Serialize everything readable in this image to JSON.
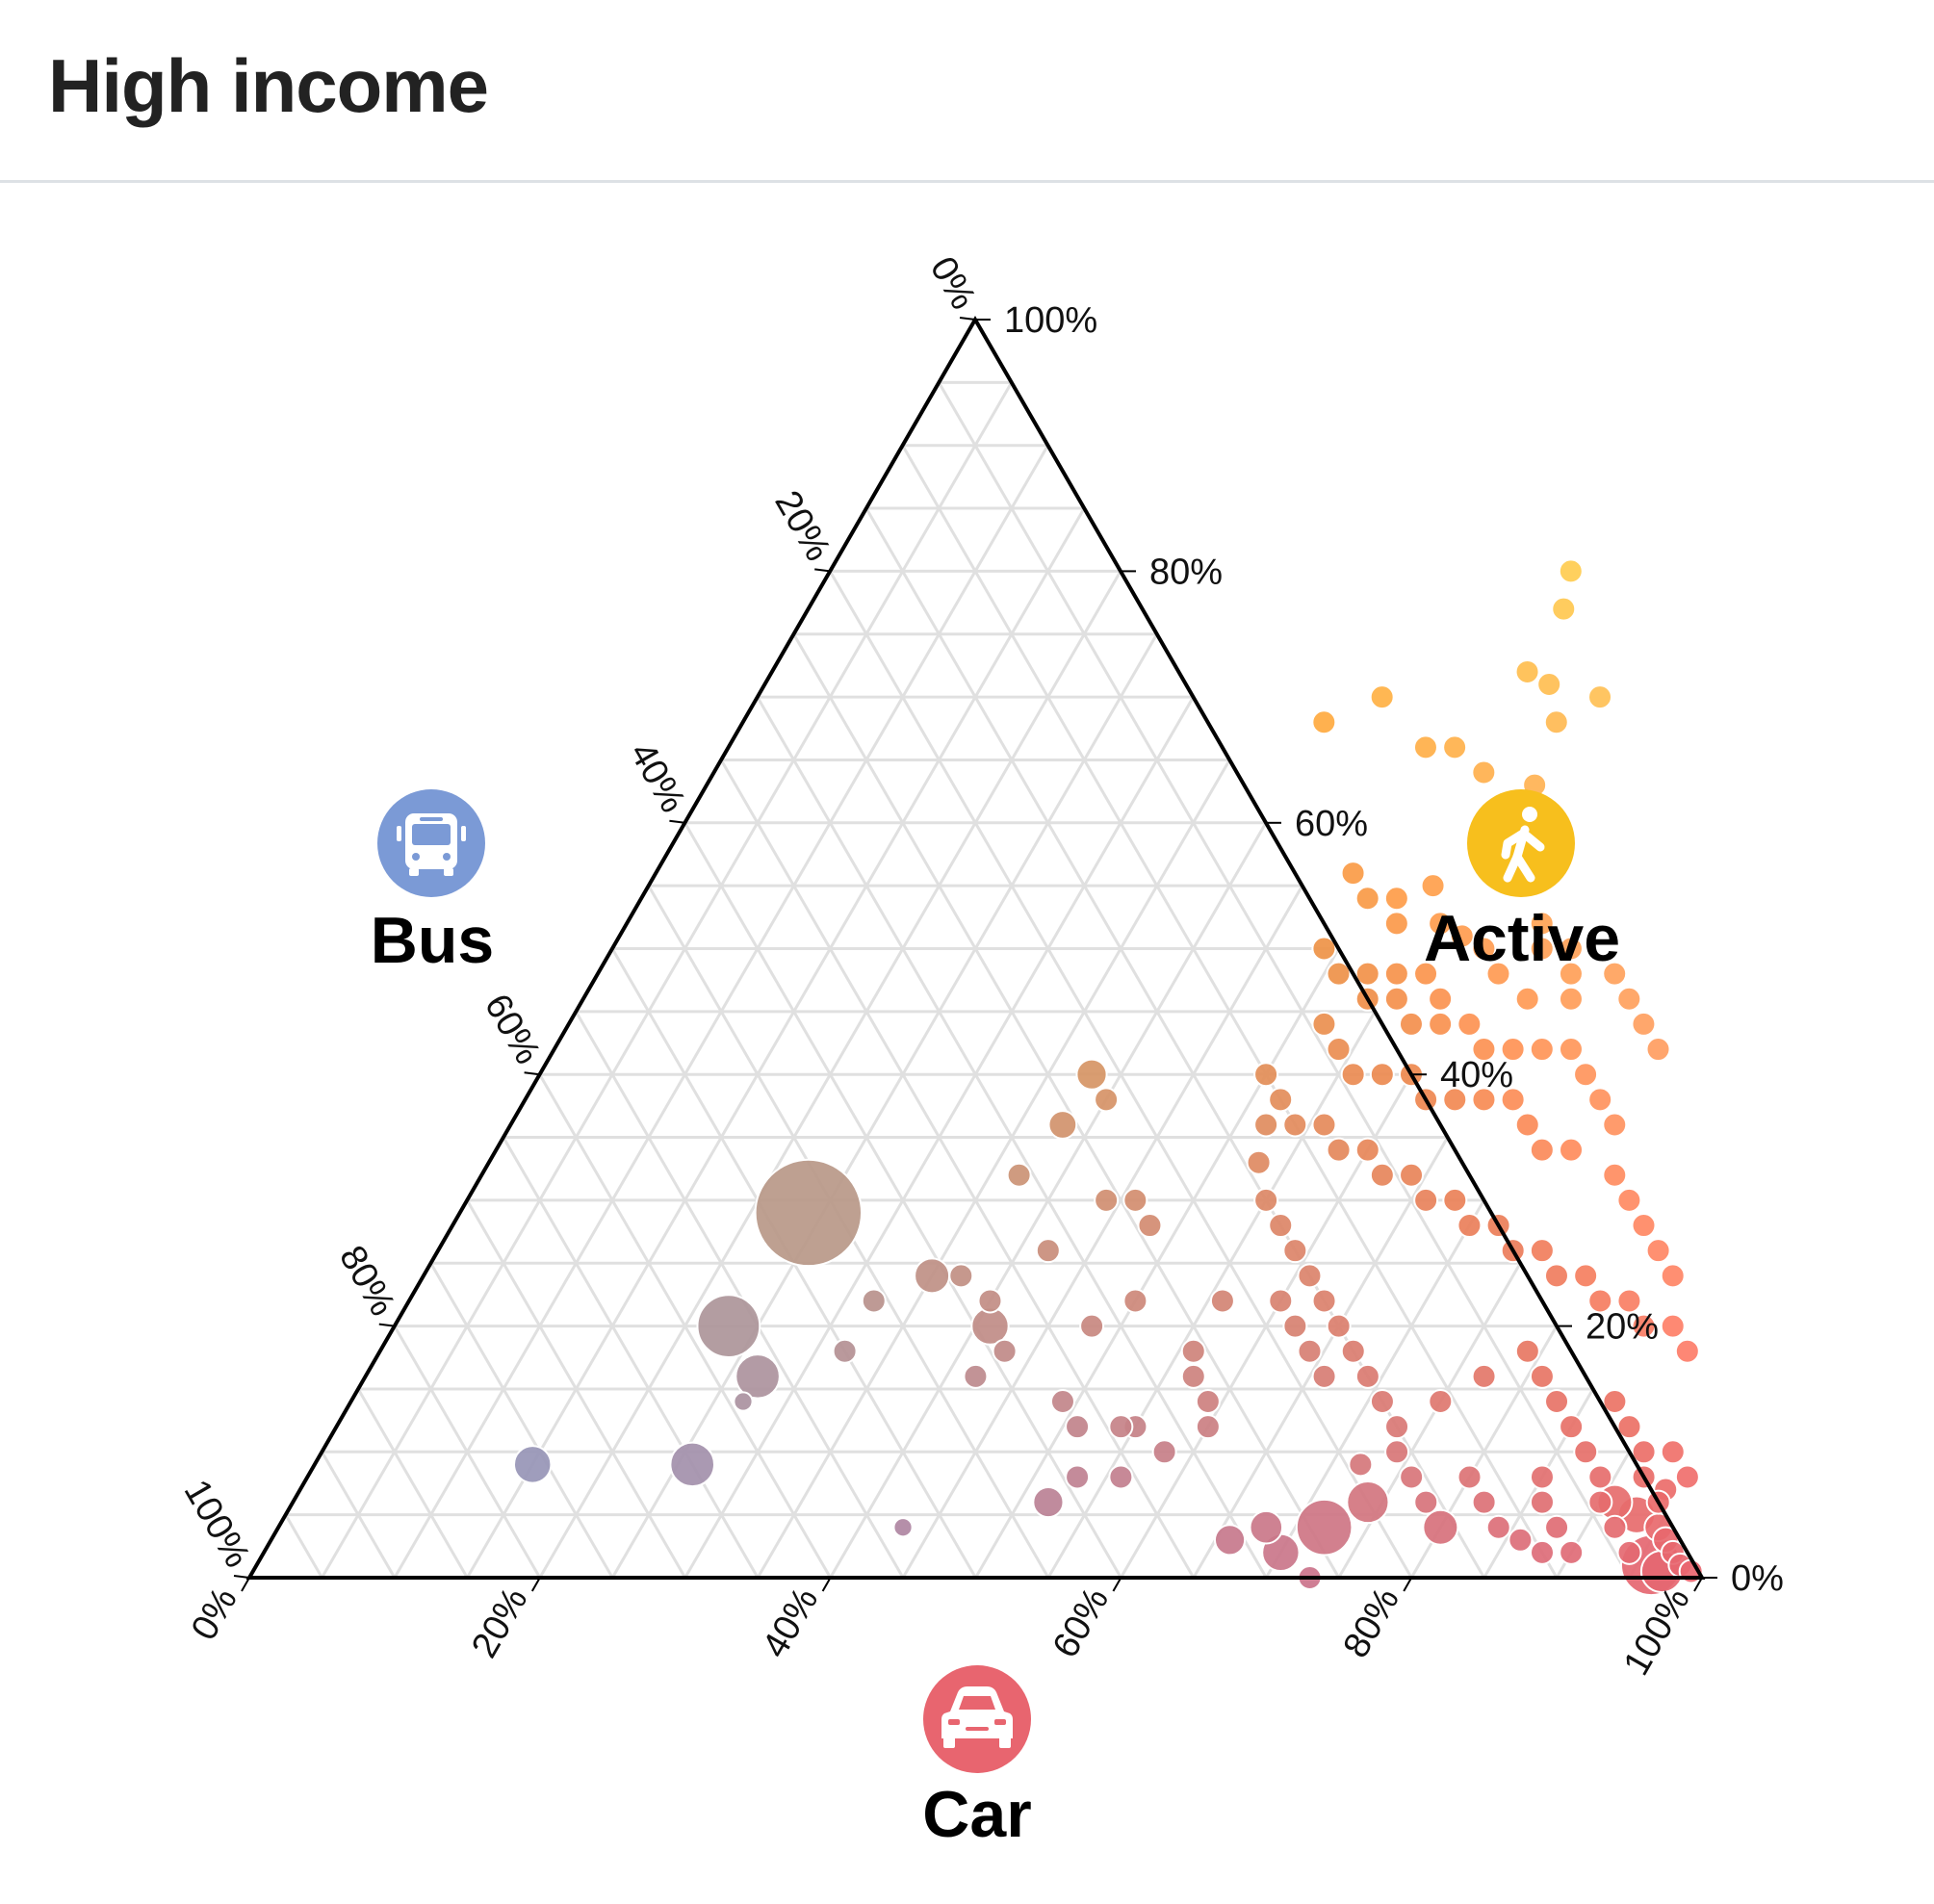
{
  "title": "High income",
  "chart_data": {
    "type": "scatter",
    "subtype": "ternary",
    "title": "High income",
    "axes": {
      "active": {
        "label": "Active",
        "icon": "walking-person-icon",
        "color": "#f7bf1d",
        "ticks": [
          "0%",
          "20%",
          "40%",
          "60%",
          "80%",
          "100%"
        ]
      },
      "bus": {
        "label": "Bus",
        "icon": "bus-icon",
        "color": "#7b9ad6",
        "ticks": [
          "0%",
          "20%",
          "40%",
          "60%",
          "80%",
          "100%"
        ]
      },
      "car": {
        "label": "Car",
        "icon": "car-icon",
        "color": "#e8656f",
        "ticks": [
          "0%",
          "20%",
          "40%",
          "60%",
          "80%",
          "100%"
        ]
      }
    },
    "grid": true,
    "grid_step_percent": 5,
    "point_fields": [
      "car_pct",
      "active_pct",
      "relative_size"
    ],
    "points": [
      [
        51,
        80,
        1
      ],
      [
        52,
        77,
        1
      ],
      [
        52,
        72,
        1
      ],
      [
        54,
        71,
        1
      ],
      [
        58,
        70,
        1
      ],
      [
        50,
        66,
        1
      ],
      [
        56,
        68,
        1
      ],
      [
        53,
        64,
        1
      ],
      [
        57,
        63,
        1
      ],
      [
        59,
        59,
        1
      ],
      [
        61,
        56,
        1
      ],
      [
        43,
        70,
        1
      ],
      [
        48,
        66,
        1
      ],
      [
        40,
        68,
        1
      ],
      [
        48,
        56,
        1
      ],
      [
        50,
        54,
        1
      ],
      [
        52,
        54,
        1
      ],
      [
        53,
        52,
        1
      ],
      [
        54,
        55,
        1
      ],
      [
        56,
        52,
        1
      ],
      [
        58,
        51,
        1
      ],
      [
        60,
        50,
        1
      ],
      [
        55,
        48,
        1
      ],
      [
        57,
        48,
        1
      ],
      [
        59,
        46,
        1
      ],
      [
        63,
        52,
        1
      ],
      [
        64,
        50,
        1
      ],
      [
        66,
        50,
        1
      ],
      [
        67,
        48,
        1
      ],
      [
        68,
        46,
        1
      ],
      [
        65,
        46,
        1
      ],
      [
        62,
        48,
        1
      ],
      [
        70,
        48,
        1
      ],
      [
        72,
        46,
        1
      ],
      [
        74,
        44,
        1
      ],
      [
        76,
        42,
        1
      ],
      [
        49,
        50,
        1
      ],
      [
        51,
        48,
        1
      ],
      [
        53,
        48,
        1
      ],
      [
        54,
        46,
        1
      ],
      [
        56,
        46,
        1
      ],
      [
        58,
        44,
        1
      ],
      [
        60,
        44,
        1
      ],
      [
        62,
        44,
        1
      ],
      [
        64,
        42,
        1
      ],
      [
        66,
        42,
        1
      ],
      [
        68,
        42,
        1
      ],
      [
        70,
        42,
        1
      ],
      [
        72,
        40,
        1
      ],
      [
        74,
        38,
        1
      ],
      [
        52,
        44,
        1
      ],
      [
        54,
        42,
        1
      ],
      [
        56,
        40,
        1
      ],
      [
        58,
        40,
        1
      ],
      [
        60,
        40,
        1
      ],
      [
        62,
        38,
        1
      ],
      [
        64,
        38,
        1
      ],
      [
        66,
        38,
        1
      ],
      [
        68,
        38,
        1
      ],
      [
        70,
        36,
        1
      ],
      [
        72,
        34,
        1
      ],
      [
        74,
        34,
        1
      ],
      [
        76,
        36,
        1
      ],
      [
        78,
        32,
        1
      ],
      [
        80,
        30,
        1
      ],
      [
        82,
        28,
        1
      ],
      [
        84,
        26,
        1
      ],
      [
        86,
        24,
        1
      ],
      [
        50,
        40,
        1
      ],
      [
        52,
        38,
        1
      ],
      [
        54,
        36,
        1
      ],
      [
        56,
        36,
        1
      ],
      [
        58,
        34,
        1
      ],
      [
        60,
        34,
        1
      ],
      [
        62,
        32,
        1
      ],
      [
        64,
        32,
        1
      ],
      [
        66,
        30,
        1
      ],
      [
        68,
        30,
        1
      ],
      [
        70,
        28,
        1
      ],
      [
        72,
        28,
        1
      ],
      [
        74,
        26,
        1
      ],
      [
        76,
        26,
        1
      ],
      [
        78,
        24,
        1
      ],
      [
        80,
        24,
        1
      ],
      [
        82,
        22,
        1
      ],
      [
        84,
        22,
        1
      ],
      [
        86,
        20,
        1
      ],
      [
        88,
        20,
        1
      ],
      [
        90,
        18,
        1
      ],
      [
        53,
        33,
        1
      ],
      [
        55,
        30,
        1
      ],
      [
        57,
        28,
        1
      ],
      [
        59,
        26,
        1
      ],
      [
        61,
        24,
        1
      ],
      [
        63,
        22,
        1
      ],
      [
        65,
        20,
        1
      ],
      [
        67,
        18,
        1
      ],
      [
        69,
        16,
        1
      ],
      [
        71,
        14,
        1
      ],
      [
        73,
        12,
        1
      ],
      [
        75,
        14,
        1
      ],
      [
        77,
        16,
        1
      ],
      [
        79,
        18,
        1
      ],
      [
        81,
        16,
        1
      ],
      [
        83,
        14,
        1
      ],
      [
        85,
        12,
        1
      ],
      [
        87,
        14,
        1
      ],
      [
        89,
        12,
        1
      ],
      [
        91,
        10,
        1
      ],
      [
        60,
        22,
        1
      ],
      [
        62,
        20,
        1
      ],
      [
        64,
        18,
        1
      ],
      [
        66,
        16,
        1
      ],
      [
        57,
        16,
        1
      ],
      [
        59,
        14,
        1
      ],
      [
        55,
        12,
        1
      ],
      [
        58,
        10,
        1
      ],
      [
        56,
        8,
        1
      ],
      [
        60,
        12,
        1
      ],
      [
        72,
        9,
        1
      ],
      [
        74,
        10,
        1
      ],
      [
        76,
        8,
        1
      ],
      [
        78,
        6,
        1
      ],
      [
        80,
        8,
        1
      ],
      [
        82,
        6,
        1
      ],
      [
        84,
        4,
        1
      ],
      [
        86,
        6,
        1
      ],
      [
        88,
        4,
        1
      ],
      [
        90,
        2,
        1
      ],
      [
        92,
        4,
        1
      ],
      [
        94,
        2,
        1
      ],
      [
        70,
        2,
        1.6
      ],
      [
        72,
        4,
        2.4
      ],
      [
        74,
        6,
        1.8
      ],
      [
        68,
        4,
        1.4
      ],
      [
        66,
        3,
        1.3
      ],
      [
        73,
        0,
        1
      ],
      [
        80,
        4,
        1.5
      ],
      [
        86,
        3,
        1
      ],
      [
        88,
        2,
        1
      ],
      [
        91,
        6,
        1.5
      ],
      [
        93,
        5,
        1.6
      ],
      [
        95,
        4,
        1.2
      ],
      [
        96,
        3,
        1.1
      ],
      [
        97,
        2,
        1
      ],
      [
        98,
        1,
        1
      ],
      [
        99,
        0.5,
        1
      ],
      [
        96,
        1,
        2.6
      ],
      [
        97,
        0.5,
        1.8
      ],
      [
        92,
        8,
        1
      ],
      [
        94,
        7,
        1
      ],
      [
        90,
        6,
        1
      ],
      [
        89,
        8,
        1
      ],
      [
        87,
        10,
        1
      ],
      [
        85,
        8,
        1
      ],
      [
        93,
        10,
        1
      ],
      [
        95,
        8,
        1
      ],
      [
        94,
        6,
        1
      ],
      [
        38,
        40,
        1.3
      ],
      [
        40,
        38,
        1
      ],
      [
        38,
        36,
        1.2
      ],
      [
        37,
        32,
        1
      ],
      [
        44,
        30,
        1
      ],
      [
        46,
        30,
        1
      ],
      [
        48,
        28,
        1
      ],
      [
        42,
        26,
        1
      ],
      [
        37,
        24,
        1
      ],
      [
        35,
        24,
        1.5
      ],
      [
        40,
        22,
        1
      ],
      [
        41,
        20,
        1.6
      ],
      [
        43,
        18,
        1
      ],
      [
        42,
        16,
        1
      ],
      [
        32,
        22,
        1
      ],
      [
        32,
        18,
        1
      ],
      [
        52,
        36,
        1
      ],
      [
        50,
        22,
        1
      ],
      [
        56,
        22,
        1
      ],
      [
        48,
        20,
        1
      ],
      [
        56,
        18,
        1
      ],
      [
        49,
        14,
        1
      ],
      [
        51,
        12,
        1
      ],
      [
        54,
        12,
        1
      ],
      [
        53,
        8,
        1
      ],
      [
        52,
        6,
        1.3
      ],
      [
        43,
        4,
        0.8
      ],
      [
        24,
        29,
        4.6
      ],
      [
        23,
        20,
        2.7
      ],
      [
        27,
        16,
        1.9
      ],
      [
        27,
        14,
        0.8
      ],
      [
        15,
        9,
        1.6
      ],
      [
        26,
        9,
        1.9
      ]
    ]
  }
}
